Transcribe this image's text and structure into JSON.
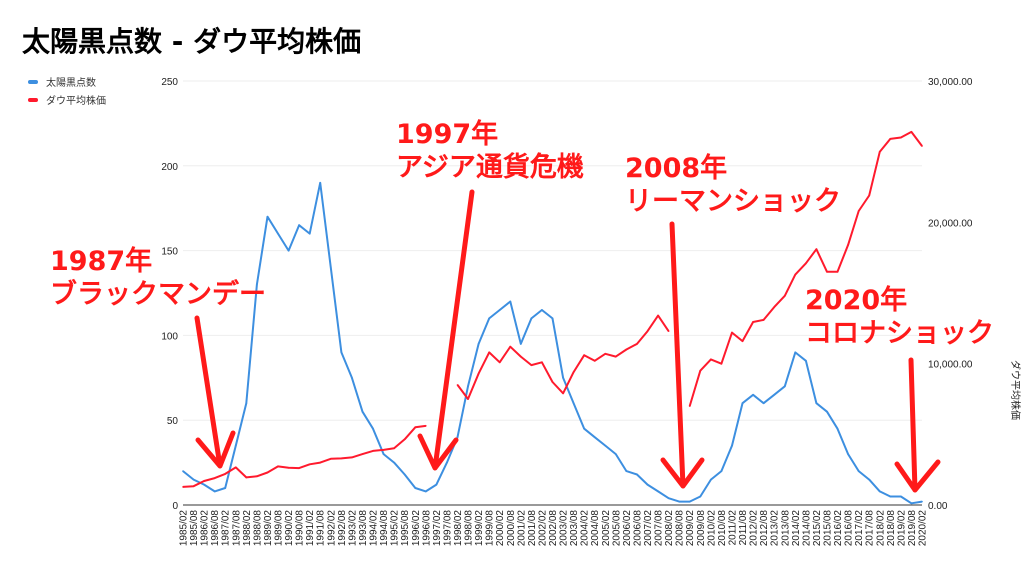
{
  "title": "太陽黒点数 - ダウ平均株価",
  "legend": [
    {
      "label": "太陽黒点数",
      "color": "#3d8fe0"
    },
    {
      "label": "ダウ平均株価",
      "color": "#ff1a2d"
    }
  ],
  "annotations": [
    {
      "year": "1987年",
      "event": "ブラックマンデー"
    },
    {
      "year": "1997年",
      "event": "アジア通貨危機"
    },
    {
      "year": "2008年",
      "event": "リーマンショック"
    },
    {
      "year": "2020年",
      "event": "コロナショック"
    }
  ],
  "chart_data": {
    "type": "line",
    "title": "太陽黒点数 - ダウ平均株価",
    "ylabel_right": "ダウ平均株価",
    "ylim_left": [
      0,
      250
    ],
    "yticks_left": [
      "250",
      "200",
      "150",
      "100",
      "50",
      "0"
    ],
    "ylim_right": [
      0,
      30000
    ],
    "yticks_right": [
      "30,000.00",
      "20,000.00",
      "10,000.00",
      "0.00"
    ],
    "legend_position": "top-left",
    "x": [
      "1985/02",
      "1985/08",
      "1986/02",
      "1986/08",
      "1987/02",
      "1987/08",
      "1988/02",
      "1988/08",
      "1989/02",
      "1989/08",
      "1990/02",
      "1990/08",
      "1991/02",
      "1991/08",
      "1992/02",
      "1992/08",
      "1993/02",
      "1993/08",
      "1994/02",
      "1994/08",
      "1995/02",
      "1995/08",
      "1996/02",
      "1996/08",
      "1997/02",
      "1997/08",
      "1998/02",
      "1998/08",
      "1999/02",
      "1999/08",
      "2000/02",
      "2000/08",
      "2001/02",
      "2001/08",
      "2002/02",
      "2002/08",
      "2003/02",
      "2003/08",
      "2004/02",
      "2004/08",
      "2005/02",
      "2005/08",
      "2006/02",
      "2006/08",
      "2007/02",
      "2007/08",
      "2008/02",
      "2008/08",
      "2009/02",
      "2009/08",
      "2010/02",
      "2010/08",
      "2011/02",
      "2011/08",
      "2012/02",
      "2012/08",
      "2013/02",
      "2013/08",
      "2014/02",
      "2014/08",
      "2015/02",
      "2015/08",
      "2016/02",
      "2016/08",
      "2017/02",
      "2017/08",
      "2018/02",
      "2018/08",
      "2019/02",
      "2019/08",
      "2020/02"
    ],
    "series": [
      {
        "name": "太陽黒点数",
        "axis": "left",
        "color": "#3d8fe0",
        "values": [
          20,
          15,
          12,
          8,
          10,
          35,
          60,
          130,
          170,
          160,
          150,
          165,
          160,
          190,
          140,
          90,
          75,
          55,
          45,
          30,
          25,
          18,
          10,
          8,
          12,
          25,
          40,
          70,
          95,
          110,
          115,
          120,
          95,
          110,
          115,
          110,
          75,
          60,
          45,
          40,
          35,
          30,
          20,
          18,
          12,
          8,
          4,
          2,
          2,
          5,
          15,
          20,
          35,
          60,
          65,
          60,
          65,
          70,
          90,
          85,
          60,
          55,
          45,
          30,
          20,
          15,
          8,
          5,
          5,
          1,
          2
        ]
      },
      {
        "name": "ダウ平均株価",
        "axis": "right",
        "color": "#ff1a2d",
        "values": [
          1280,
          1330,
          1700,
          1900,
          2200,
          2660,
          1950,
          2030,
          2300,
          2730,
          2630,
          2610,
          2880,
          3000,
          3270,
          3300,
          3370,
          3600,
          3830,
          3900,
          4010,
          4650,
          5500,
          5600,
          null,
          null,
          8500,
          7500,
          9300,
          10800,
          10100,
          11200,
          10500,
          9900,
          10100,
          8700,
          7900,
          9400,
          10600,
          10200,
          10700,
          10500,
          11000,
          11400,
          12300,
          13400,
          12300,
          null,
          7000,
          9500,
          10300,
          10000,
          12200,
          11600,
          12950,
          13100,
          14000,
          14800,
          16300,
          17100,
          18100,
          16500,
          16500,
          18400,
          20800,
          21900,
          25000,
          25900,
          26000,
          26400,
          25400
        ]
      }
    ]
  }
}
